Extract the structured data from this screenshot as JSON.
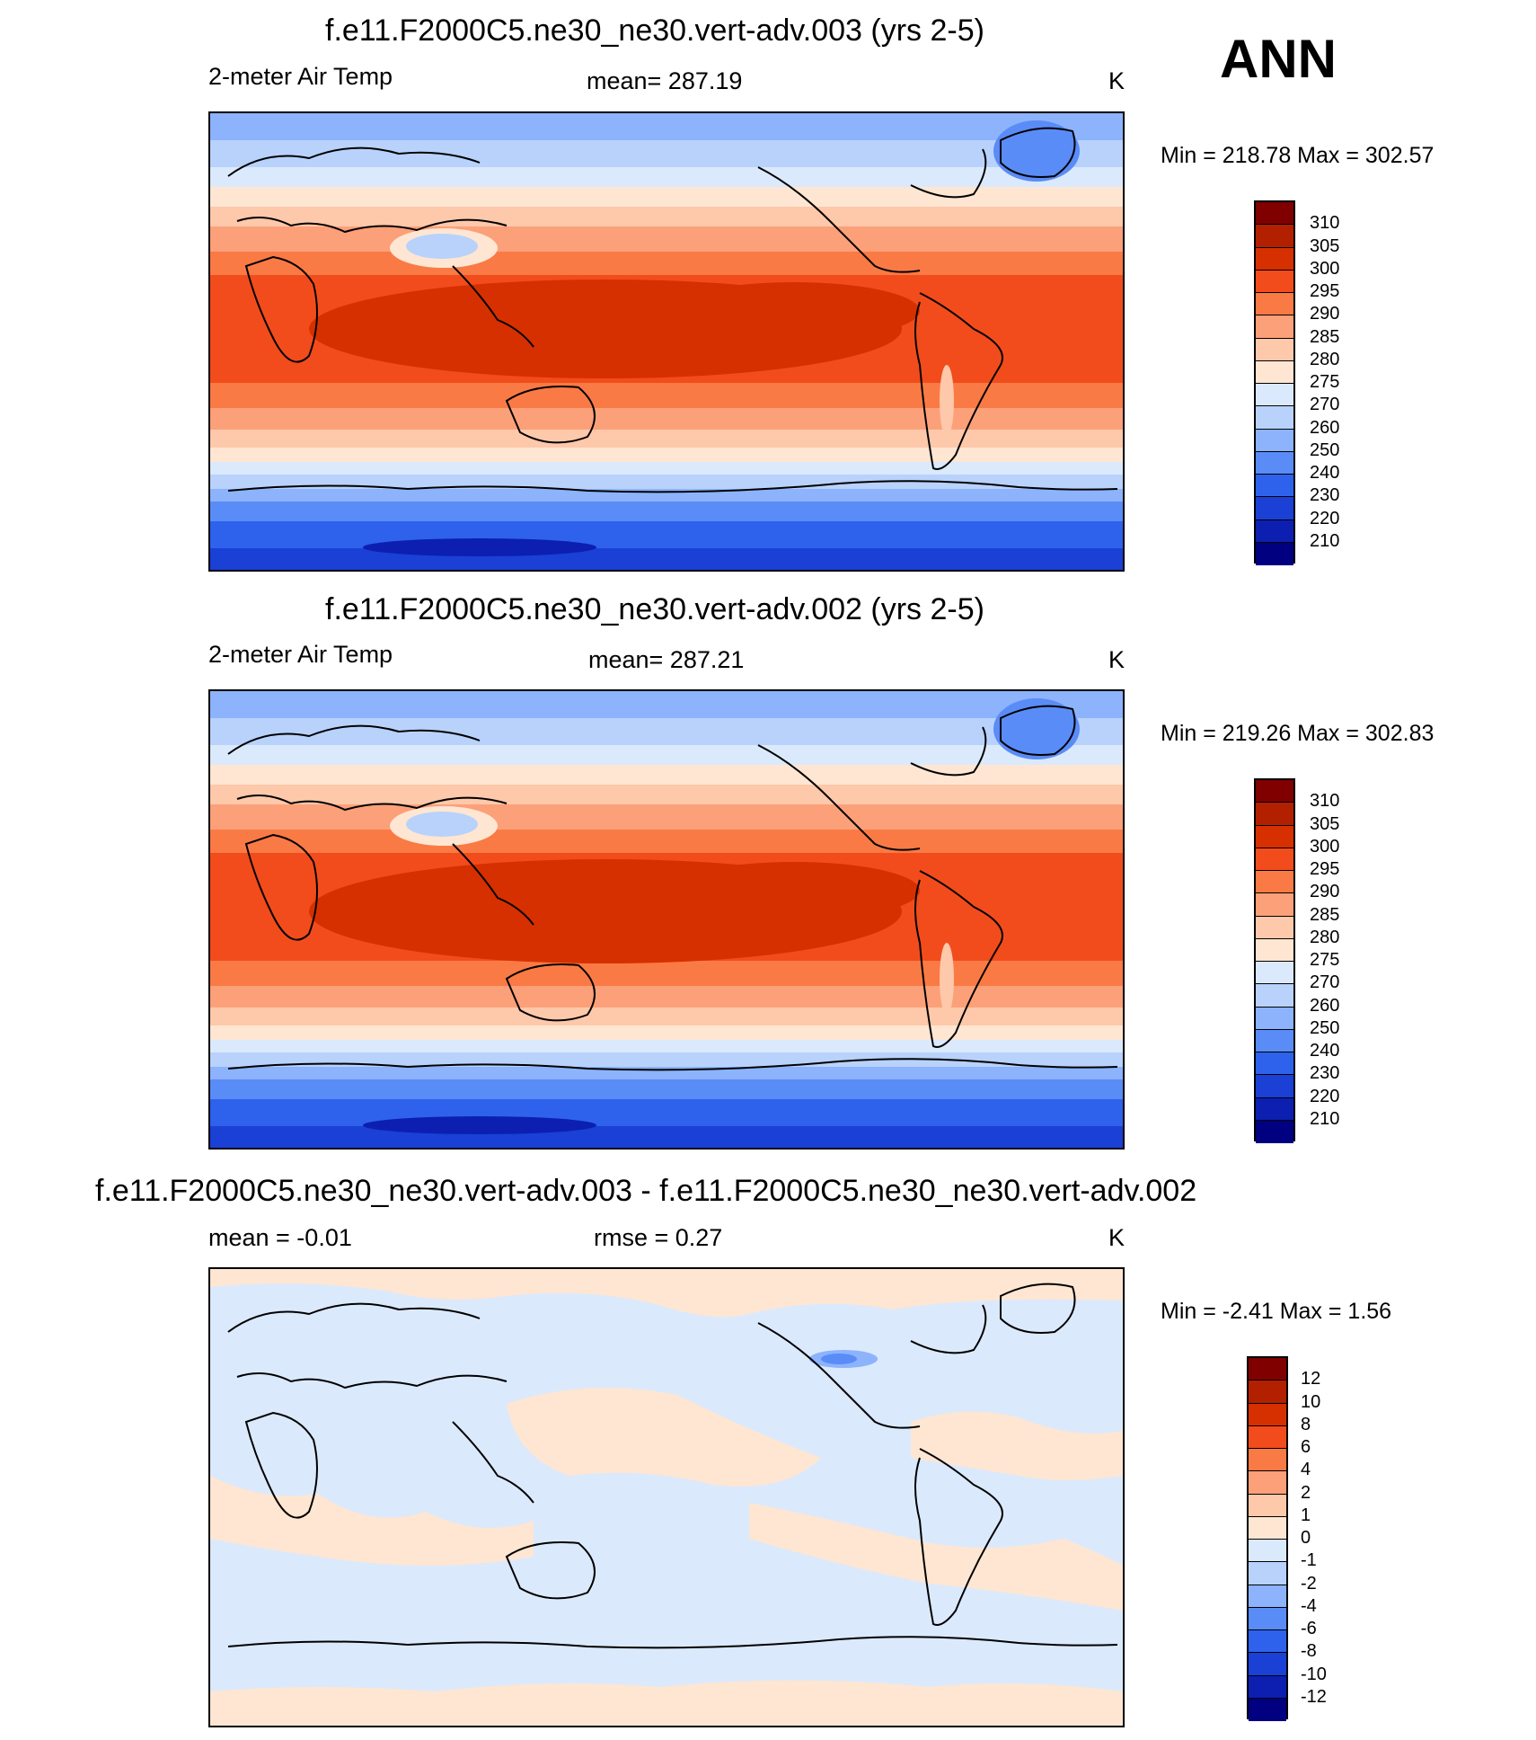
{
  "season_label": "ANN",
  "chart_data": [
    {
      "type": "heatmap",
      "title": "f.e11.F2000C5.ne30_ne30.vert-adv.003 (yrs 2-5)",
      "variable": "2-meter Air Temp",
      "mean_label": "mean= 287.19",
      "units": "K",
      "min": 218.78,
      "max": 302.57,
      "minmax_text": "Min = 218.78 Max = 302.57",
      "colorbar": {
        "levels": [
          "310",
          "305",
          "300",
          "295",
          "290",
          "285",
          "280",
          "275",
          "270",
          "260",
          "250",
          "240",
          "230",
          "220",
          "210"
        ],
        "colors": [
          "#800000",
          "#b32000",
          "#d63000",
          "#f24c1c",
          "#fa7a45",
          "#fca07a",
          "#fec8aa",
          "#fee6d2",
          "#dbe9fc",
          "#b8d2fc",
          "#8cb3fc",
          "#5a8cf7",
          "#2e62ec",
          "#1a40d6",
          "#0c1fb0",
          "#000080"
        ]
      }
    },
    {
      "type": "heatmap",
      "title": "f.e11.F2000C5.ne30_ne30.vert-adv.002 (yrs 2-5)",
      "variable": "2-meter Air Temp",
      "mean_label": "mean= 287.21",
      "units": "K",
      "min": 219.26,
      "max": 302.83,
      "minmax_text": "Min = 219.26 Max = 302.83",
      "colorbar": {
        "levels": [
          "310",
          "305",
          "300",
          "295",
          "290",
          "285",
          "280",
          "275",
          "270",
          "260",
          "250",
          "240",
          "230",
          "220",
          "210"
        ],
        "colors": [
          "#800000",
          "#b32000",
          "#d63000",
          "#f24c1c",
          "#fa7a45",
          "#fca07a",
          "#fec8aa",
          "#fee6d2",
          "#dbe9fc",
          "#b8d2fc",
          "#8cb3fc",
          "#5a8cf7",
          "#2e62ec",
          "#1a40d6",
          "#0c1fb0",
          "#000080"
        ]
      }
    },
    {
      "type": "heatmap",
      "title": "f.e11.F2000C5.ne30_ne30.vert-adv.003 - f.e11.F2000C5.ne30_ne30.vert-adv.002",
      "mean_label": "mean =  -0.01",
      "rmse_label": "rmse =   0.27",
      "units": "K",
      "min": -2.41,
      "max": 1.56,
      "minmax_text": "Min =  -2.41 Max =   1.56",
      "colorbar": {
        "levels": [
          "12",
          "10",
          "8",
          "6",
          "4",
          "2",
          "1",
          "0",
          "-1",
          "-2",
          "-4",
          "-6",
          "-8",
          "-10",
          "-12"
        ],
        "colors": [
          "#800000",
          "#b32000",
          "#d63000",
          "#f24c1c",
          "#fa7a45",
          "#fca07a",
          "#fec8aa",
          "#fee6d2",
          "#dbe9fc",
          "#b8d2fc",
          "#8cb3fc",
          "#5a8cf7",
          "#2e62ec",
          "#1a40d6",
          "#0c1fb0",
          "#000080"
        ]
      }
    }
  ]
}
